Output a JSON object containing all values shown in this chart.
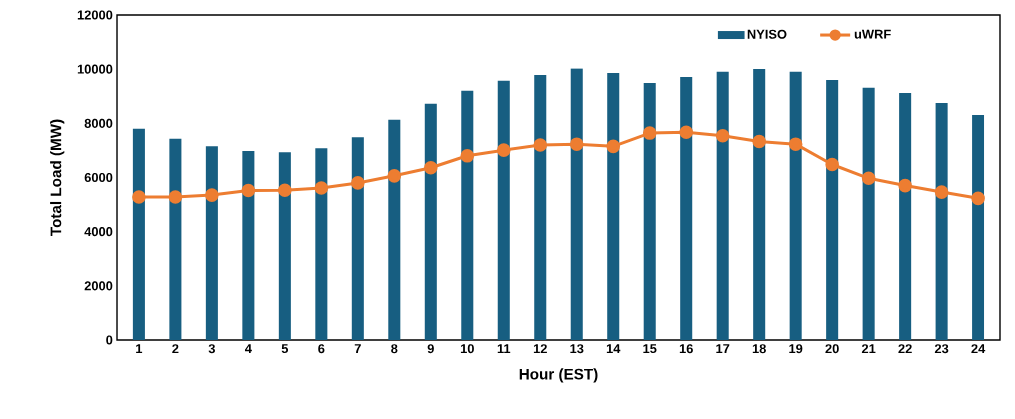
{
  "chart_data": {
    "type": "bar",
    "xlabel": "Hour (EST)",
    "ylabel": "Total Load (MW)",
    "categories": [
      "1",
      "2",
      "3",
      "4",
      "5",
      "6",
      "7",
      "8",
      "9",
      "10",
      "11",
      "12",
      "13",
      "14",
      "15",
      "16",
      "17",
      "18",
      "19",
      "20",
      "21",
      "22",
      "23",
      "24"
    ],
    "series": [
      {
        "name": "NYISO",
        "color": "#175e81",
        "values": [
          7800,
          7430,
          7150,
          6980,
          6930,
          7080,
          7490,
          8130,
          8720,
          9200,
          9570,
          9780,
          10020,
          9860,
          9490,
          9710,
          9900,
          10010,
          9900,
          9600,
          9310,
          9120,
          8750,
          8310
        ]
      },
      {
        "name": "uWRF",
        "type": "line",
        "color": "#ed7d31",
        "marker": "circle",
        "values": [
          5280,
          5280,
          5350,
          5520,
          5530,
          5610,
          5800,
          6060,
          6360,
          6800,
          7010,
          7200,
          7230,
          7150,
          7640,
          7670,
          7540,
          7330,
          7230,
          6480,
          5970,
          5700,
          5460,
          5230
        ]
      }
    ],
    "ylim": [
      0,
      12000
    ],
    "yticks": [
      0,
      2000,
      4000,
      6000,
      8000,
      10000,
      12000
    ],
    "grid": false,
    "legend": "top right"
  }
}
